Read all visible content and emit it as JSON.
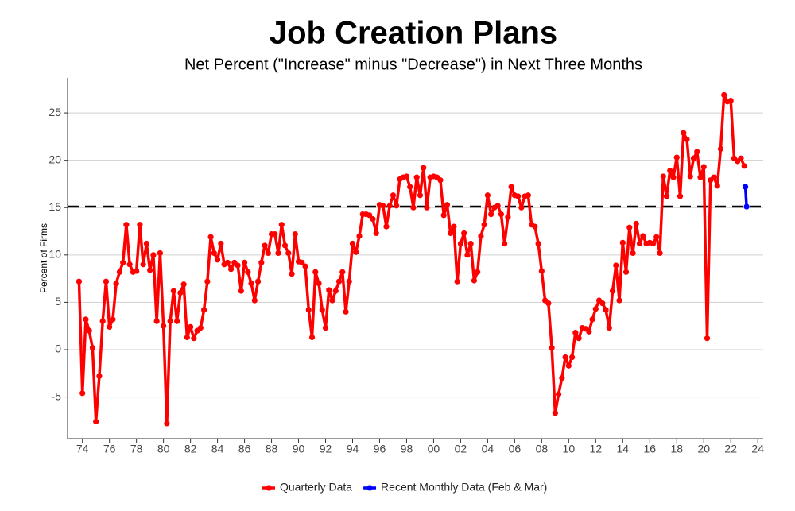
{
  "chart_data": {
    "type": "line",
    "title": "Job Creation Plans",
    "subtitle": "Net Percent (\"Increase\" minus \"Decrease\") in Next Three Months",
    "y_label": "Percent of Firms",
    "xlim": [
      1972.9,
      2024.4
    ],
    "ylim": [
      -9.4,
      28.7
    ],
    "xticks": [
      {
        "value": 1974,
        "label": "74"
      },
      {
        "value": 1976,
        "label": "76"
      },
      {
        "value": 1978,
        "label": "78"
      },
      {
        "value": 1980,
        "label": "80"
      },
      {
        "value": 1982,
        "label": "82"
      },
      {
        "value": 1984,
        "label": "84"
      },
      {
        "value": 1986,
        "label": "86"
      },
      {
        "value": 1988,
        "label": "88"
      },
      {
        "value": 1990,
        "label": "90"
      },
      {
        "value": 1992,
        "label": "92"
      },
      {
        "value": 1994,
        "label": "94"
      },
      {
        "value": 1996,
        "label": "96"
      },
      {
        "value": 1998,
        "label": "98"
      },
      {
        "value": 2000,
        "label": "00"
      },
      {
        "value": 2002,
        "label": "02"
      },
      {
        "value": 2004,
        "label": "04"
      },
      {
        "value": 2006,
        "label": "06"
      },
      {
        "value": 2008,
        "label": "08"
      },
      {
        "value": 2010,
        "label": "10"
      },
      {
        "value": 2012,
        "label": "12"
      },
      {
        "value": 2014,
        "label": "14"
      },
      {
        "value": 2016,
        "label": "16"
      },
      {
        "value": 2018,
        "label": "18"
      },
      {
        "value": 2020,
        "label": "20"
      },
      {
        "value": 2022,
        "label": "22"
      },
      {
        "value": 2024,
        "label": "24"
      }
    ],
    "yticks": [
      -5,
      0,
      5,
      10,
      15,
      20,
      25
    ],
    "grid": true,
    "reference_line": 15.1,
    "series": [
      {
        "name": "Quarterly Data",
        "color": "#ff0000",
        "x": [
          1973.75,
          1974,
          1974.25,
          1974.5,
          1974.75,
          1975,
          1975.25,
          1975.5,
          1975.75,
          1976,
          1976.25,
          1976.5,
          1976.75,
          1977,
          1977.25,
          1977.5,
          1977.75,
          1978,
          1978.25,
          1978.5,
          1978.75,
          1979,
          1979.25,
          1979.5,
          1979.75,
          1980,
          1980.25,
          1980.5,
          1980.75,
          1981,
          1981.25,
          1981.5,
          1981.75,
          1982,
          1982.25,
          1982.5,
          1982.75,
          1983,
          1983.25,
          1983.5,
          1983.75,
          1984,
          1984.25,
          1984.5,
          1984.75,
          1985,
          1985.25,
          1985.5,
          1985.75,
          1986,
          1986.25,
          1986.5,
          1986.75,
          1987,
          1987.25,
          1987.5,
          1987.75,
          1988,
          1988.25,
          1988.5,
          1988.75,
          1989,
          1989.25,
          1989.5,
          1989.75,
          1990,
          1990.25,
          1990.5,
          1990.75,
          1991,
          1991.25,
          1991.5,
          1991.75,
          1992,
          1992.25,
          1992.5,
          1992.75,
          1993,
          1993.25,
          1993.5,
          1993.75,
          1994,
          1994.25,
          1994.5,
          1994.75,
          1995,
          1995.25,
          1995.5,
          1995.75,
          1996,
          1996.25,
          1996.5,
          1996.75,
          1997,
          1997.25,
          1997.5,
          1997.75,
          1998,
          1998.25,
          1998.5,
          1998.75,
          1999,
          1999.25,
          1999.5,
          1999.75,
          2000,
          2000.25,
          2000.5,
          2000.75,
          2001,
          2001.25,
          2001.5,
          2001.75,
          2002,
          2002.25,
          2002.5,
          2002.75,
          2003,
          2003.25,
          2003.5,
          2003.75,
          2004,
          2004.25,
          2004.5,
          2004.75,
          2005,
          2005.25,
          2005.5,
          2005.75,
          2006,
          2006.25,
          2006.5,
          2006.75,
          2007,
          2007.25,
          2007.5,
          2007.75,
          2008,
          2008.25,
          2008.5,
          2008.75,
          2009,
          2009.25,
          2009.5,
          2009.75,
          2010,
          2010.25,
          2010.5,
          2010.75,
          2011,
          2011.25,
          2011.5,
          2011.75,
          2012,
          2012.25,
          2012.5,
          2012.75,
          2013,
          2013.25,
          2013.5,
          2013.75,
          2014,
          2014.25,
          2014.5,
          2014.75,
          2015,
          2015.25,
          2015.5,
          2015.75,
          2016,
          2016.25,
          2016.5,
          2016.75,
          2017,
          2017.25,
          2017.5,
          2017.75,
          2018,
          2018.25,
          2018.5,
          2018.75,
          2019,
          2019.25,
          2019.5,
          2019.75,
          2020,
          2020.25,
          2020.5,
          2020.75,
          2021,
          2021.25,
          2021.5,
          2021.75,
          2022,
          2022.25,
          2022.5,
          2022.75,
          2023
        ],
        "values": [
          7.2,
          -4.6,
          3.2,
          2.0,
          0.2,
          -7.6,
          -2.8,
          3.0,
          7.2,
          2.4,
          3.2,
          7.0,
          8.2,
          9.2,
          13.2,
          9.0,
          8.2,
          8.3,
          13.2,
          9.0,
          11.2,
          8.4,
          10.0,
          3.0,
          10.2,
          2.5,
          -7.8,
          3.0,
          6.2,
          3.0,
          6.0,
          6.9,
          1.3,
          2.4,
          1.2,
          2.0,
          2.3,
          4.2,
          7.2,
          11.9,
          10.2,
          9.5,
          11.2,
          9.0,
          9.2,
          8.5,
          9.2,
          8.9,
          6.2,
          9.2,
          8.2,
          7.0,
          5.2,
          7.2,
          9.2,
          11.0,
          10.2,
          12.2,
          12.2,
          10.2,
          13.2,
          11.0,
          10.2,
          8.0,
          12.2,
          9.3,
          9.2,
          8.8,
          4.2,
          1.3,
          8.2,
          7.0,
          4.2,
          2.3,
          6.3,
          5.2,
          6.2,
          7.2,
          8.2,
          4.0,
          7.2,
          11.2,
          10.3,
          12.0,
          14.3,
          14.3,
          14.2,
          13.8,
          12.3,
          15.3,
          15.2,
          13.0,
          15.2,
          16.3,
          15.2,
          18.0,
          18.2,
          18.3,
          17.2,
          15.0,
          18.2,
          16.3,
          19.2,
          15.0,
          18.2,
          18.3,
          18.2,
          17.9,
          14.2,
          15.3,
          12.3,
          13.0,
          7.2,
          11.2,
          12.3,
          10.0,
          11.2,
          7.3,
          8.2,
          12.0,
          13.2,
          16.3,
          14.3,
          15.0,
          15.2,
          14.3,
          11.2,
          14.0,
          17.2,
          16.3,
          16.2,
          15.0,
          16.2,
          16.3,
          13.2,
          13.0,
          11.2,
          8.3,
          5.2,
          4.9,
          0.2,
          -6.7,
          -4.7,
          -3.0,
          -0.8,
          -1.7,
          -0.8,
          1.8,
          1.2,
          2.3,
          2.2,
          1.9,
          3.2,
          4.3,
          5.2,
          4.9,
          4.2,
          2.3,
          6.2,
          8.9,
          5.2,
          11.3,
          8.2,
          12.9,
          10.2,
          13.3,
          11.2,
          12.0,
          11.2,
          11.3,
          11.2,
          11.9,
          10.2,
          18.3,
          16.2,
          18.9,
          18.2,
          20.3,
          16.2,
          22.9,
          22.2,
          18.3,
          20.2,
          20.9,
          18.2,
          19.3,
          1.2,
          17.9,
          18.2,
          17.3,
          21.2,
          26.9,
          26.2,
          26.3,
          20.2,
          19.9,
          20.2,
          19.4
        ]
      },
      {
        "name": "Recent Monthly Data (Feb & Mar)",
        "color": "#0000ff",
        "x": [
          2023.08,
          2023.17
        ],
        "values": [
          17.2,
          15.1
        ]
      }
    ]
  }
}
